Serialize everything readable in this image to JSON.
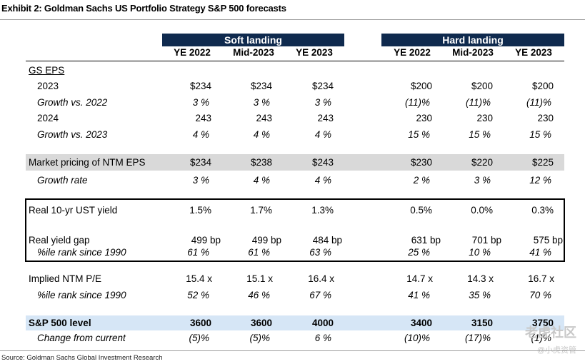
{
  "title": "Exhibit 2: Goldman Sachs US Portfolio Strategy S&P 500 forecasts",
  "groups": {
    "soft": "Soft landing",
    "hard": "Hard landing"
  },
  "columns": [
    "YE 2022",
    "Mid-2023",
    "YE 2023",
    "YE 2022",
    "Mid-2023",
    "YE 2023"
  ],
  "rows": {
    "gs_eps": {
      "label": "GS EPS"
    },
    "eps_2023": {
      "label": "2023",
      "values": [
        "$234",
        "$234",
        "$234",
        "$200",
        "$200",
        "$200"
      ]
    },
    "growth_2022": {
      "label": "Growth vs. 2022",
      "values": [
        "3 %",
        "3 %",
        "3 %",
        "(11)%",
        "(11)%",
        "(11)%"
      ]
    },
    "eps_2024": {
      "label": "2024",
      "values": [
        "243",
        "243",
        "243",
        "230",
        "230",
        "230"
      ]
    },
    "growth_2023": {
      "label": "Growth vs. 2023",
      "values": [
        "4 %",
        "4 %",
        "4 %",
        "15 %",
        "15 %",
        "15 %"
      ]
    },
    "market_ntm": {
      "label": "Market pricing of NTM EPS",
      "values": [
        "$234",
        "$238",
        "$243",
        "$230",
        "$220",
        "$225"
      ]
    },
    "growth_rate": {
      "label": "Growth rate",
      "values": [
        "3 %",
        "4 %",
        "4 %",
        "2 %",
        "3 %",
        "12 %"
      ]
    },
    "real_ust": {
      "label": "Real 10-yr UST yield",
      "values": [
        "1.5%",
        "1.7%",
        "1.3%",
        "0.5%",
        "0.0%",
        "0.3%"
      ]
    },
    "real_gap": {
      "label": "Real yield gap",
      "values": [
        "499 bp",
        "499 bp",
        "484 bp",
        "631 bp",
        "701 bp",
        "575 bp"
      ]
    },
    "gap_rank": {
      "label": "%ile rank since 1990",
      "values": [
        "61 %",
        "61 %",
        "63 %",
        "25 %",
        "10 %",
        "41 %"
      ]
    },
    "implied_pe": {
      "label": "Implied NTM P/E",
      "values": [
        "15.4 x",
        "15.1 x",
        "16.4 x",
        "14.7 x",
        "14.3 x",
        "16.7 x"
      ]
    },
    "pe_rank": {
      "label": "%ile rank since 1990",
      "values": [
        "52 %",
        "46 %",
        "67 %",
        "41 %",
        "35 %",
        "70 %"
      ]
    },
    "sp_level": {
      "label": "S&P 500 level",
      "values": [
        "3600",
        "3600",
        "4000",
        "3400",
        "3150",
        "3750"
      ]
    },
    "change": {
      "label": "Change from current",
      "values": [
        "(5)%",
        "(5)%",
        "6 %",
        "(10)%",
        "(17)%",
        "(1)%"
      ]
    }
  },
  "source": "Source: Goldman Sachs Global Investment Research",
  "watermark": {
    "main": "老虎社区",
    "sub": "@小虎资管"
  }
}
